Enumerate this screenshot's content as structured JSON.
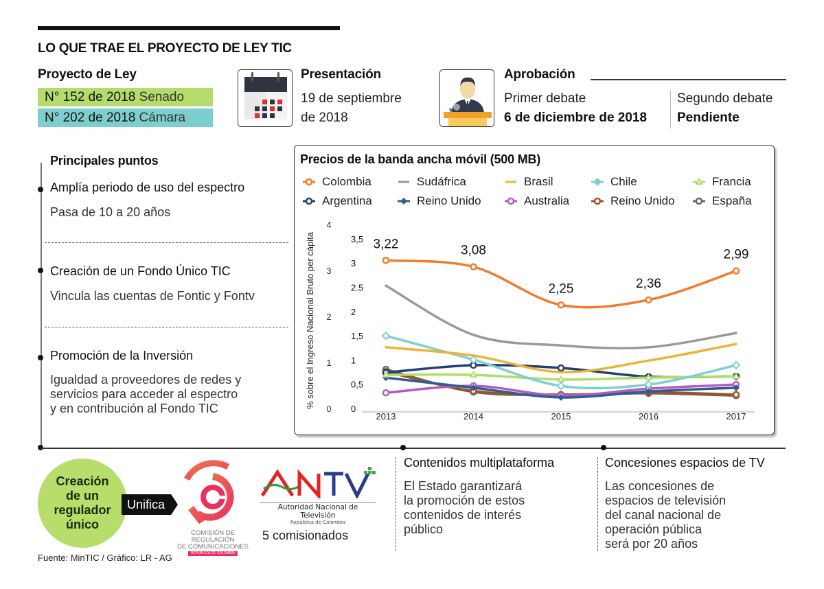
{
  "header": {
    "title": "LO QUE TRAE EL PROYECTO DE LEY TIC"
  },
  "proyecto": {
    "heading": "Proyecto de Ley",
    "senado_number": "N° 152 de 2018",
    "senado_label": "Senado",
    "senado_color": "#b5dc6a",
    "camara_number": "N° 202 de 2018",
    "camara_label": "Cámara",
    "camara_color": "#7dcfcf"
  },
  "presentacion": {
    "icon": "calendar-icon",
    "heading": "Presentación",
    "line1": "19 de septiembre",
    "line2": "de 2018"
  },
  "aprobacion": {
    "icon": "speaker-podium-icon",
    "heading": "Aprobación",
    "primer_label": "Primer debate",
    "primer_value": "6 de diciembre de 2018",
    "segundo_label": "Segundo debate",
    "segundo_value": "Pendiente"
  },
  "puntos": {
    "heading": "Principales puntos",
    "items": [
      {
        "title": "Amplía periodo de uso del espectro",
        "body": [
          "Pasa de 10 a 20 años"
        ]
      },
      {
        "title": "Creación de un Fondo Único TIC",
        "body": [
          "Vincula las cuentas de Fontic y Fontv"
        ]
      },
      {
        "title": "Promoción de la Inversión",
        "body": [
          "Igualdad a proveedores de redes y",
          "servicios para acceder al espectro",
          "y en contribución al Fondo TIC"
        ]
      }
    ]
  },
  "regulador": {
    "circle_lines": [
      "Creación",
      "de un",
      "regulador",
      "único"
    ],
    "arrow_label": "Unifica",
    "crc_logo_lines": [
      "COMISIÓN DE REGULACIÓN",
      "DE COMUNICACIONES",
      "REPÚBLICA DE COLOMBIA"
    ],
    "antv_logo": "ANTV",
    "antv_sub1": "Autoridad Nacional de Televisión",
    "antv_sub2": "República de Colombia",
    "comisionados": "5 comisionados"
  },
  "contenidos": {
    "title": "Contenidos multiplataforma",
    "body": [
      "El Estado garantizará",
      "la promoción de estos",
      "contenidos de interés",
      "público"
    ]
  },
  "concesiones": {
    "title": "Concesiones espacios de TV",
    "body": [
      "Las concesiones de",
      "espacios de televisión",
      "del canal nacional de",
      "operación pública",
      "será por 20 años"
    ]
  },
  "source": "Fuente: MinTIC / Gráfico: LR - AG",
  "chart_data": {
    "type": "line",
    "title": "Precios de la banda ancha móvil (500 MB)",
    "xlabel": "",
    "ylabel": "% sobre el Ingreso Nacional Bruto per cápita",
    "x": [
      "2013",
      "2014",
      "2015",
      "2016",
      "2017"
    ],
    "ylim": [
      0,
      4
    ],
    "yticks_outer": [
      "0",
      "1",
      "2",
      "3",
      "4"
    ],
    "yticks_inner": [
      "0",
      "0,5",
      "1",
      "1,5",
      "2",
      "2.5",
      "3",
      "3,5"
    ],
    "grid": false,
    "legend_position": "top",
    "series": [
      {
        "name": "Colombia",
        "color": "#ef7d2d",
        "marker": "circle-open",
        "values": [
          3.22,
          3.08,
          2.25,
          2.36,
          2.99
        ],
        "labels": [
          "3,22",
          "3,08",
          "2,25",
          "2,36",
          "2,99"
        ]
      },
      {
        "name": "Sudáfrica",
        "color": "#999999",
        "marker": "none",
        "values": [
          2.67,
          1.6,
          1.37,
          1.33,
          1.64
        ]
      },
      {
        "name": "Brasil",
        "color": "#eab437",
        "marker": "none",
        "values": [
          1.33,
          1.15,
          0.79,
          1.04,
          1.4
        ]
      },
      {
        "name": "Chile",
        "color": "#7ed0d4",
        "marker": "diamond",
        "values": [
          1.58,
          1.06,
          0.49,
          0.52,
          0.94
        ]
      },
      {
        "name": "Francia",
        "color": "#afdd68",
        "marker": "triangle",
        "values": [
          0.73,
          0.73,
          0.63,
          0.67,
          0.7
        ]
      },
      {
        "name": "Argentina",
        "color": "#253f74",
        "marker": "circle-open",
        "values": [
          0.78,
          0.94,
          0.88,
          0.69,
          0.7
        ]
      },
      {
        "name": "Reino Unido",
        "color": "#2a5f93",
        "marker": "diamond-filled",
        "values": [
          0.67,
          0.45,
          0.24,
          0.37,
          0.45
        ]
      },
      {
        "name": "Australia",
        "color": "#b45bbf",
        "marker": "circle-open",
        "values": [
          0.34,
          0.49,
          0.28,
          0.43,
          0.52
        ]
      },
      {
        "name": "Reino Unido",
        "color": "#a2521c",
        "marker": "circle-open",
        "values": [
          0.8,
          0.38,
          0.3,
          0.35,
          0.3
        ]
      },
      {
        "name": "España",
        "color": "#666666",
        "marker": "circle-open",
        "values": [
          0.85,
          0.36,
          0.3,
          0.33,
          0.28
        ]
      }
    ]
  }
}
